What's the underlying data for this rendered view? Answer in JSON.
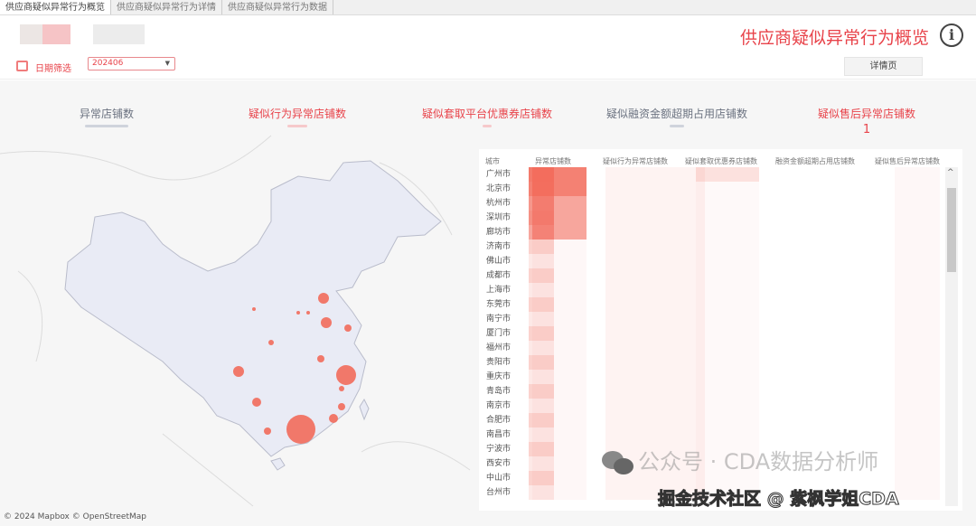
{
  "tabs": [
    "供应商疑似异常行为概览",
    "供应商疑似异常行为详情",
    "供应商疑似异常行为数据"
  ],
  "active_tab": 0,
  "header": {
    "title": "供应商疑似异常行为概览",
    "info_icon": "info-circle-icon"
  },
  "filter": {
    "label": "日期筛选",
    "value": "202406",
    "icon": "calendar-icon"
  },
  "detail_button": "详情页",
  "kpis": [
    {
      "label": "异常店铺数",
      "value": "",
      "color": "#6b7280"
    },
    {
      "label": "疑似行为异常店铺数",
      "value": "",
      "color": "#e8434a"
    },
    {
      "label": "疑似套取平台优惠券店铺数",
      "value": "",
      "color": "#e8434a"
    },
    {
      "label": "疑似融资金额超期占用店铺数",
      "value": "",
      "color": "#6b7280"
    },
    {
      "label": "疑似售后异常店铺数",
      "value": "1",
      "color": "#e8434a"
    }
  ],
  "table": {
    "columns": [
      "城市",
      "异常店铺数",
      "疑似行为异常店铺数",
      "疑似套取优惠券店铺数",
      "融资金额超期占用店铺数",
      "疑似售后异常店铺数"
    ],
    "cities": [
      "广州市",
      "北京市",
      "杭州市",
      "深圳市",
      "廊坊市",
      "济南市",
      "佛山市",
      "成都市",
      "上海市",
      "东莞市",
      "南宁市",
      "厦门市",
      "福州市",
      "贵阳市",
      "重庆市",
      "青岛市",
      "南京市",
      "合肥市",
      "南昌市",
      "宁波市",
      "西安市",
      "中山市",
      "台州市"
    ]
  },
  "map": {
    "attribution": "© 2024 Mapbox  © OpenStreetMap",
    "bubble_color": "#f26b5b",
    "land_color": "#e9ebf5"
  },
  "watermark": {
    "line1": "公众号 · CDA数据分析师",
    "line2": "掘金技术社区 @ 紫枫学姐CDA"
  },
  "colors": {
    "accent": "#e8434a"
  }
}
